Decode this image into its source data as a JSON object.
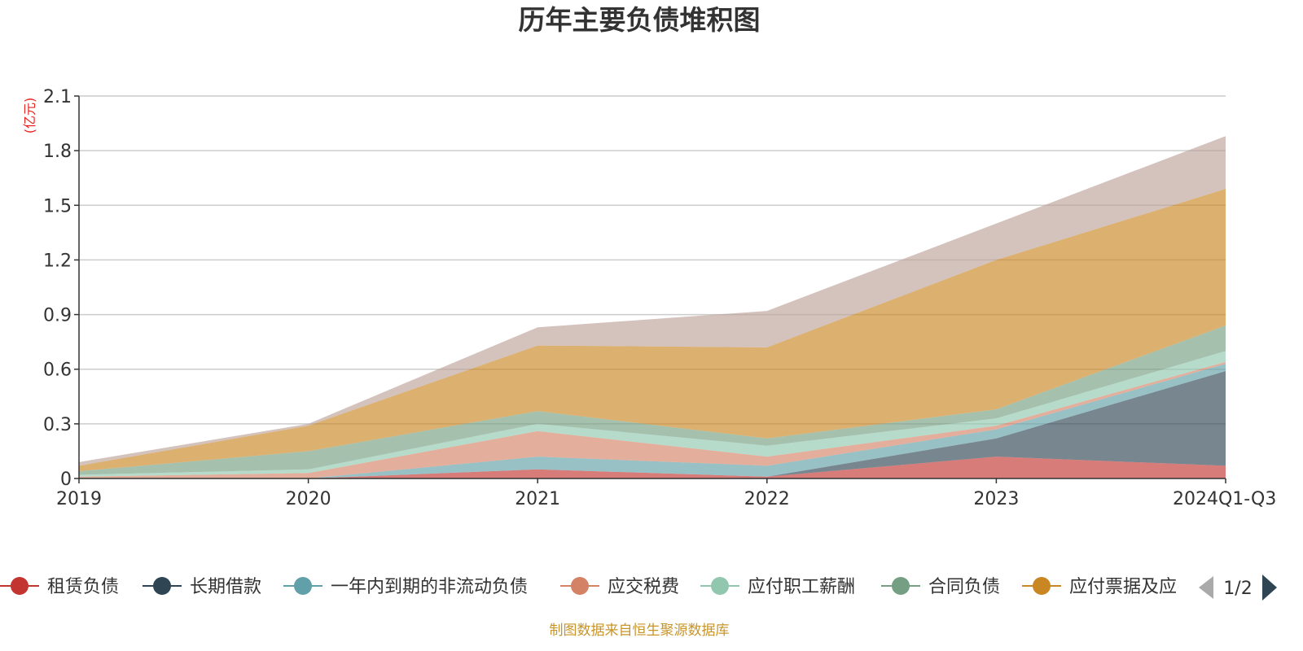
{
  "chart_data": {
    "type": "area",
    "stacked": true,
    "title": "历年主要负债堆积图",
    "ylabel": "(亿元)",
    "ylim": [
      0,
      2.1
    ],
    "yticks": [
      "0",
      "0.3",
      "0.6",
      "0.9",
      "1.2",
      "1.5",
      "1.8",
      "2.1"
    ],
    "ytick_values": [
      0,
      0.3,
      0.6,
      0.9,
      1.2,
      1.5,
      1.8,
      2.1
    ],
    "categories": [
      "2019",
      "2020",
      "2021",
      "2022",
      "2023",
      "2024Q1-Q3"
    ],
    "grid": true,
    "legend_position": "bottom",
    "series": [
      {
        "name": "租赁负债",
        "color": "#c23531",
        "values": [
          0,
          0,
          0.05,
          0.01,
          0.12,
          0.07
        ]
      },
      {
        "name": "长期借款",
        "color": "#2f4554",
        "values": [
          0,
          0,
          0,
          0,
          0.1,
          0.52
        ]
      },
      {
        "name": "一年内到期的非流动负债",
        "color": "#61a0a8",
        "values": [
          0,
          0,
          0.07,
          0.06,
          0.05,
          0.04
        ]
      },
      {
        "name": "应交税费",
        "color": "#d48265",
        "values": [
          0.01,
          0.03,
          0.14,
          0.05,
          0.02,
          0.01
        ]
      },
      {
        "name": "应付职工薪酬",
        "color": "#91c7ae",
        "values": [
          0.01,
          0.02,
          0.04,
          0.06,
          0.04,
          0.06
        ]
      },
      {
        "name": "合同负债",
        "color": "#749f83",
        "values": [
          0.02,
          0.1,
          0.07,
          0.04,
          0.05,
          0.14
        ]
      },
      {
        "name": "应付票据及应付账款",
        "color": "#ca8622",
        "values": [
          0.03,
          0.14,
          0.36,
          0.5,
          0.82,
          0.75
        ]
      },
      {
        "name": "",
        "color": "#bda29a",
        "values": [
          0.02,
          0.01,
          0.1,
          0.2,
          0.2,
          0.29
        ]
      }
    ]
  },
  "legend": {
    "visible_labels": [
      "租赁负债",
      "长期借款",
      "一年内到期的非流动负债",
      "应交税费",
      "应付职工薪酬",
      "合同负债",
      "应付票据及应"
    ],
    "page_indicator": "1/2"
  },
  "footer": {
    "source": "制图数据来自恒生聚源数据库"
  }
}
